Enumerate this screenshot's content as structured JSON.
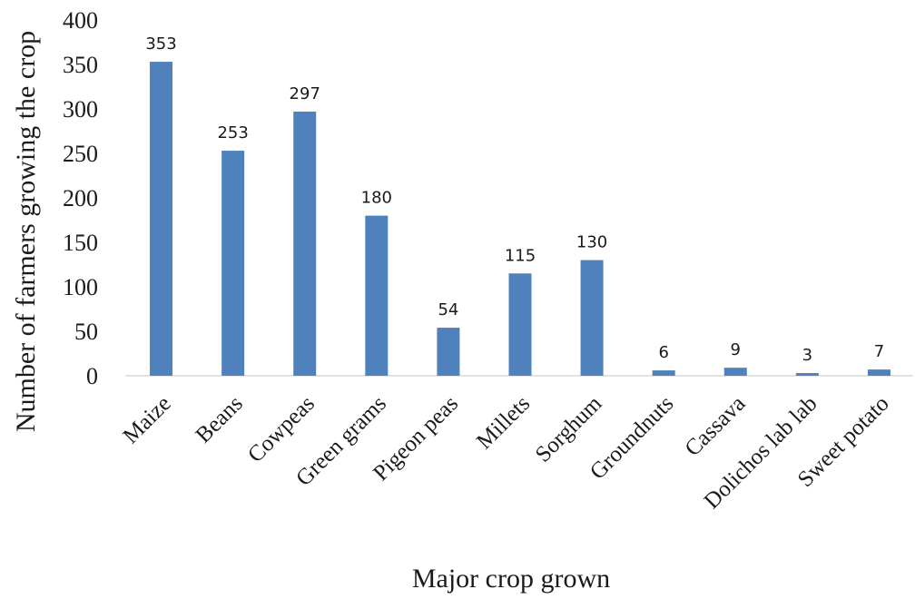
{
  "chart_data": {
    "type": "bar",
    "title": "",
    "xlabel": "Major crop grown",
    "ylabel": "Number of farmers growing the crop",
    "categories": [
      "Maize",
      "Beans",
      "Cowpeas",
      "Green grams",
      "Pigeon peas",
      "Millets",
      "Sorghum",
      "Groundnuts",
      "Cassava",
      "Dolichos lab lab",
      "Sweet potato"
    ],
    "values": [
      353,
      253,
      297,
      180,
      54,
      115,
      130,
      6,
      9,
      3,
      7
    ],
    "ylim": [
      0,
      400
    ],
    "yticks": [
      0,
      50,
      100,
      150,
      200,
      250,
      300,
      350,
      400
    ],
    "grid": false,
    "legend": "none",
    "bar_color": "#4f81bd"
  }
}
